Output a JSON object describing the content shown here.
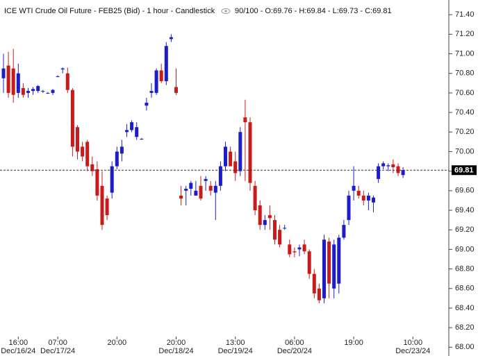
{
  "chart_data": {
    "type": "candlestick",
    "title": "ICE WTI Crude Oil Future - FEB25 (Bid) - 1 hour - Candlestick",
    "info": "90/100 - O:69.76 - H:69.84 - L:69.73 - C:69.81",
    "up_color": "#1c1cc8",
    "down_color": "#c81c1c",
    "categories": [
      null,
      null,
      null,
      "16:00",
      null,
      null,
      null,
      null,
      null,
      null,
      null,
      "07:00",
      null,
      null,
      null,
      null,
      null,
      null,
      null,
      null,
      null,
      null,
      null,
      "20:00",
      null,
      null,
      null,
      null,
      null,
      null,
      null,
      null,
      null,
      null,
      null,
      "20:00",
      null,
      null,
      null,
      null,
      null,
      null,
      null,
      null,
      null,
      null,
      null,
      "13:00",
      null,
      null,
      null,
      null,
      null,
      null,
      null,
      null,
      null,
      null,
      null,
      "06:00",
      null,
      null,
      null,
      null,
      null,
      null,
      null,
      null,
      null,
      null,
      null,
      "19:00",
      null,
      null,
      null,
      null,
      null,
      null,
      null,
      null,
      null,
      null,
      null,
      "10:00"
    ],
    "dates": [
      null,
      null,
      null,
      "Dec/16/24",
      null,
      null,
      null,
      null,
      null,
      null,
      null,
      "Dec/17/24",
      null,
      null,
      null,
      null,
      null,
      null,
      null,
      null,
      null,
      null,
      null,
      null,
      null,
      null,
      null,
      null,
      null,
      null,
      null,
      null,
      null,
      null,
      null,
      "Dec/18/24",
      null,
      null,
      null,
      null,
      null,
      null,
      null,
      null,
      null,
      null,
      null,
      "Dec/19/24",
      null,
      null,
      null,
      null,
      null,
      null,
      null,
      null,
      null,
      null,
      null,
      "Dec/20/24",
      null,
      null,
      null,
      null,
      null,
      null,
      null,
      null,
      null,
      null,
      null,
      null,
      null,
      null,
      null,
      null,
      null,
      null,
      null,
      null,
      null,
      null,
      null,
      "Dec/23/24"
    ],
    "open": [
      70.75,
      70.88,
      70.85,
      70.6,
      70.65,
      70.6,
      70.62,
      70.62,
      70.62,
      70.6,
      70.6,
      70.77,
      70.84,
      70.8,
      70.63,
      70.25,
      70.05,
      70.1,
      69.87,
      69.82,
      69.65,
      69.52,
      69.58,
      69.85,
      69.98,
      70.2,
      70.22,
      70.15,
      70.13,
      70.47,
      70.6,
      70.6,
      70.83,
      70.72,
      71.15,
      70.66,
      69.55,
      69.6,
      69.62,
      69.55,
      69.65,
      69.7,
      69.65,
      69.58,
      69.65,
      69.85,
      70.0,
      69.9,
      69.8,
      70.35,
      70.3,
      69.65,
      69.45,
      69.25,
      69.35,
      69.3,
      69.2,
      69.22,
      69.05,
      68.98,
      69.0,
      69.05,
      68.98,
      68.75,
      68.6,
      68.5,
      69.08,
      68.6,
      68.65,
      69.12,
      69.3,
      69.6,
      69.6,
      69.55,
      69.5,
      69.48,
      69.72,
      69.85,
      69.85,
      69.87,
      69.85,
      69.76,
      null,
      null
    ],
    "high": [
      71.0,
      71.02,
      71.05,
      70.9,
      70.7,
      70.65,
      70.66,
      70.68,
      70.63,
      70.61,
      70.64,
      70.78,
      70.86,
      70.86,
      70.65,
      70.27,
      70.1,
      70.12,
      69.95,
      69.9,
      69.8,
      69.55,
      69.9,
      70.05,
      70.12,
      70.28,
      70.32,
      70.3,
      70.14,
      70.55,
      70.7,
      70.85,
      70.9,
      71.12,
      71.2,
      70.85,
      69.65,
      69.65,
      69.7,
      69.7,
      69.75,
      69.75,
      69.7,
      69.7,
      69.9,
      70.1,
      70.05,
      70.0,
      70.25,
      70.53,
      70.35,
      69.7,
      69.5,
      69.35,
      69.45,
      69.35,
      69.25,
      69.25,
      69.1,
      69.02,
      69.05,
      69.1,
      69.0,
      68.8,
      68.65,
      69.15,
      69.12,
      69.1,
      69.15,
      69.3,
      69.6,
      69.85,
      69.65,
      69.6,
      69.58,
      69.55,
      69.88,
      69.9,
      69.88,
      69.92,
      69.88,
      69.84,
      null,
      null
    ],
    "low": [
      70.6,
      70.55,
      70.5,
      70.55,
      70.55,
      70.55,
      70.58,
      70.6,
      70.6,
      70.59,
      70.58,
      70.76,
      70.8,
      70.6,
      69.95,
      69.92,
      69.9,
      69.8,
      69.75,
      69.5,
      69.2,
      69.3,
      69.52,
      69.82,
      69.9,
      70.15,
      70.2,
      70.12,
      70.12,
      70.42,
      70.55,
      70.58,
      70.7,
      70.68,
      71.12,
      70.58,
      69.45,
      69.45,
      69.55,
      69.55,
      69.5,
      69.6,
      69.55,
      69.3,
      69.6,
      69.8,
      69.85,
      69.7,
      69.75,
      69.7,
      69.6,
      69.35,
      69.2,
      69.2,
      69.2,
      69.05,
      69.02,
      69.2,
      68.92,
      68.92,
      68.93,
      68.95,
      68.7,
      68.5,
      68.45,
      68.45,
      68.5,
      68.5,
      68.55,
      69.1,
      69.25,
      69.5,
      69.52,
      69.45,
      69.4,
      69.38,
      69.68,
      69.82,
      69.8,
      69.78,
      69.75,
      69.73,
      null,
      null
    ],
    "close": [
      70.85,
      70.6,
      70.58,
      70.8,
      70.58,
      70.62,
      70.64,
      70.67,
      70.62,
      70.6,
      70.63,
      70.77,
      70.85,
      70.63,
      70.05,
      70.0,
      69.95,
      69.85,
      69.8,
      69.55,
      69.25,
      69.35,
      69.85,
      70.0,
      70.05,
      70.22,
      70.3,
      70.25,
      70.13,
      70.5,
      70.62,
      70.83,
      70.72,
      71.08,
      71.17,
      70.6,
      69.52,
      69.62,
      69.68,
      69.6,
      69.52,
      69.72,
      69.6,
      69.65,
      69.85,
      70.05,
      69.85,
      69.78,
      70.2,
      70.3,
      69.68,
      69.4,
      69.25,
      69.3,
      69.32,
      69.1,
      69.05,
      69.22,
      68.95,
      68.97,
      69.02,
      68.98,
      68.75,
      68.55,
      68.48,
      69.1,
      68.65,
      69.05,
      69.12,
      69.25,
      69.55,
      69.65,
      69.55,
      69.5,
      69.55,
      69.53,
      69.85,
      69.88,
      69.86,
      69.84,
      69.78,
      69.81,
      null,
      null
    ],
    "last_price": 69.81,
    "ylim": [
      67.91,
      71.55
    ],
    "yticks": [
      {
        "value": 68.0,
        "label": "68.00"
      },
      {
        "value": 68.2,
        "label": "68.20"
      },
      {
        "value": 68.4,
        "label": "68.40"
      },
      {
        "value": 68.6,
        "label": "68.60"
      },
      {
        "value": 68.8,
        "label": "68.80"
      },
      {
        "value": 69.0,
        "label": "69.00"
      },
      {
        "value": 69.2,
        "label": "69.20"
      },
      {
        "value": 69.4,
        "label": "69.40"
      },
      {
        "value": 69.6,
        "label": "69.60"
      },
      {
        "value": 69.8,
        "label": "69.80"
      },
      {
        "value": 70.0,
        "label": "70.00"
      },
      {
        "value": 70.2,
        "label": "70.20"
      },
      {
        "value": 70.4,
        "label": "70.40"
      },
      {
        "value": 70.6,
        "label": "70.60"
      },
      {
        "value": 70.8,
        "label": "70.80"
      },
      {
        "value": 71.0,
        "label": "71.00"
      },
      {
        "value": 71.2,
        "label": "71.20"
      },
      {
        "value": 71.4,
        "label": "71.40"
      }
    ],
    "grid": false
  }
}
